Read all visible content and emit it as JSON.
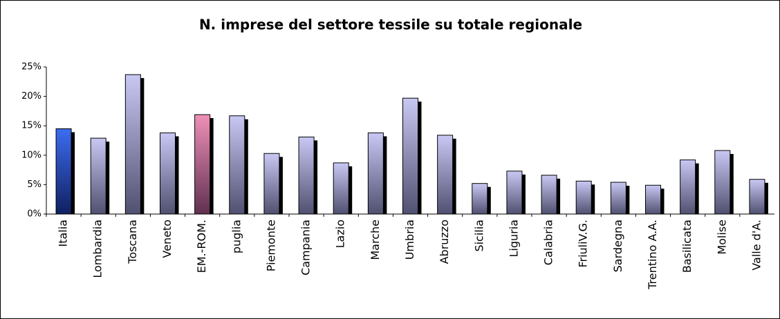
{
  "chart_data": {
    "type": "bar",
    "title": "N. imprese del settore tessile su totale regionale",
    "categories": [
      "Italia",
      "Lombardia",
      "Toscana",
      "Veneto",
      "EM.-ROM.",
      "puglia",
      "Piemonte",
      "Campania",
      "Lazio",
      "Marche",
      "Umbria",
      "Abruzzo",
      "Sicilia",
      "Liguria",
      "Calabria",
      "FriuliV.G.",
      "Sardegna",
      "Trentino A.A.",
      "Basilicata",
      "Molise",
      "Valle d'A."
    ],
    "values": [
      14.5,
      12.9,
      23.7,
      13.8,
      16.9,
      16.7,
      10.3,
      13.1,
      8.7,
      13.8,
      19.7,
      13.4,
      5.2,
      7.3,
      6.6,
      5.6,
      5.4,
      4.9,
      9.2,
      10.8,
      5.9
    ],
    "colors": [
      "#3c6cf0",
      "#c8c8f4",
      "#c8c8f4",
      "#c8c8f4",
      "#f090b8",
      "#c8c8f4",
      "#c8c8f4",
      "#c8c8f4",
      "#c8c8f4",
      "#c8c8f4",
      "#c8c8f4",
      "#c8c8f4",
      "#c8c8f4",
      "#c8c8f4",
      "#c8c8f4",
      "#c8c8f4",
      "#c8c8f4",
      "#c8c8f4",
      "#c8c8f4",
      "#c8c8f4",
      "#c8c8f4"
    ],
    "ylim": [
      0,
      25
    ],
    "yticks": [
      {
        "value": 0,
        "label": "0%"
      },
      {
        "value": 5,
        "label": "5%"
      },
      {
        "value": 10,
        "label": "10%"
      },
      {
        "value": 15,
        "label": "15%"
      },
      {
        "value": 20,
        "label": "20%"
      },
      {
        "value": 25,
        "label": "25%"
      }
    ],
    "grid": false
  }
}
